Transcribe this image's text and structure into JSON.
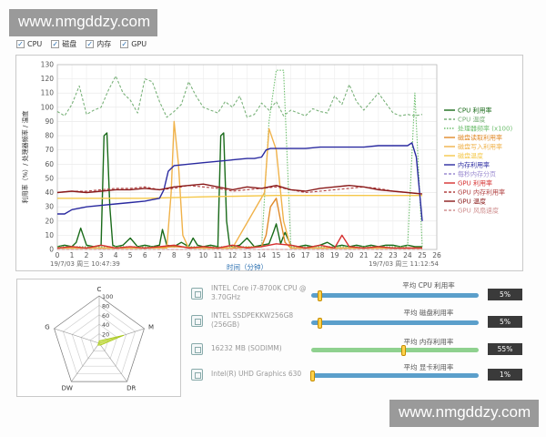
{
  "watermark": "www.nmgddzy.com",
  "toolbar": {
    "checkboxes": [
      {
        "label": "CPU",
        "checked": true
      },
      {
        "label": "磁盘",
        "checked": true
      },
      {
        "label": "内存",
        "checked": true
      },
      {
        "label": "GPU",
        "checked": true
      }
    ]
  },
  "chart_data": {
    "type": "line",
    "ylabel": "利用率（%）/ 处理器频率 / 温度",
    "xlabel": "时间（分钟）",
    "xlim": [
      0,
      26
    ],
    "ylim": [
      0,
      130
    ],
    "x_ticks": [
      0,
      1,
      2,
      3,
      4,
      5,
      6,
      7,
      8,
      9,
      10,
      11,
      12,
      13,
      14,
      15,
      16,
      17,
      18,
      19,
      20,
      21,
      22,
      23,
      24,
      25,
      26
    ],
    "y_ticks": [
      0,
      10,
      20,
      30,
      40,
      50,
      60,
      70,
      80,
      90,
      100,
      110,
      120,
      130
    ],
    "start_time": "19/7/03 周三 10:47:39",
    "end_time": "19/7/03 周三 11:12:54",
    "grid": true,
    "legend_position": "right",
    "series": [
      {
        "name": "CPU 利用率",
        "color": "#1a6b1a",
        "style": "solid",
        "x": [
          0,
          0.5,
          1,
          1.3,
          1.6,
          2,
          2.5,
          3,
          3.2,
          3.4,
          3.6,
          3.8,
          4,
          4.5,
          5,
          5.5,
          6,
          6.5,
          7,
          7.2,
          7.5,
          8,
          8.5,
          9,
          9.3,
          9.6,
          10,
          10.5,
          11,
          11.2,
          11.4,
          11.6,
          11.8,
          12,
          12.5,
          13,
          13.5,
          14,
          14.5,
          14.8,
          15,
          15.3,
          15.6,
          16,
          16.5,
          17,
          17.5,
          18,
          18.5,
          19,
          19.5,
          20,
          20.5,
          21,
          21.5,
          22,
          22.5,
          23,
          23.5,
          24,
          24.5,
          25
        ],
        "y": [
          2,
          3,
          2,
          5,
          15,
          3,
          2,
          3,
          80,
          82,
          30,
          3,
          2,
          3,
          8,
          2,
          3,
          2,
          3,
          14,
          3,
          2,
          5,
          2,
          8,
          3,
          2,
          3,
          2,
          80,
          82,
          20,
          3,
          2,
          3,
          8,
          2,
          3,
          4,
          12,
          18,
          4,
          12,
          3,
          2,
          3,
          2,
          3,
          5,
          2,
          3,
          2,
          3,
          2,
          3,
          2,
          3,
          3,
          2,
          3,
          2,
          2
        ]
      },
      {
        "name": "CPU 温度",
        "color": "#7ab27a",
        "style": "dashed",
        "x": [
          0,
          0.5,
          1,
          1.5,
          2,
          2.5,
          3,
          3.5,
          4,
          4.5,
          5,
          5.5,
          6,
          6.5,
          7,
          7.5,
          8,
          8.5,
          9,
          9.5,
          10,
          10.5,
          11,
          11.5,
          12,
          12.5,
          13,
          13.5,
          14,
          14.5,
          15,
          15.5,
          16,
          16.5,
          17,
          17.5,
          18,
          18.5,
          19,
          19.5,
          20,
          20.5,
          21,
          21.5,
          22,
          22.5,
          23,
          23.5,
          24,
          24.5,
          25
        ],
        "y": [
          97,
          94,
          102,
          115,
          95,
          98,
          100,
          112,
          122,
          110,
          105,
          96,
          120,
          118,
          104,
          93,
          97,
          102,
          118,
          108,
          100,
          98,
          96,
          104,
          100,
          108,
          93,
          95,
          103,
          98,
          104,
          94,
          98,
          96,
          94,
          99,
          97,
          96,
          108,
          102,
          116,
          104,
          98,
          104,
          110,
          103,
          96,
          94,
          95,
          94,
          95
        ]
      },
      {
        "name": "处理器频率 (x100)",
        "color": "#6fbf6f",
        "style": "dotted",
        "x": [
          0,
          2,
          4,
          6,
          7.5,
          8,
          8.5,
          9,
          10,
          12,
          14,
          14.5,
          15,
          15.5,
          16,
          18,
          20,
          22,
          24,
          24.5,
          25
        ],
        "y": [
          2,
          2,
          2,
          2,
          2,
          3,
          2,
          2,
          2,
          2,
          2,
          90,
          126,
          126,
          2,
          2,
          2,
          2,
          2,
          110,
          2
        ]
      },
      {
        "name": "磁盘读取利用率",
        "color": "#e08a2a",
        "style": "solid",
        "x": [
          0,
          2,
          4,
          6,
          8,
          10,
          12,
          14,
          14.3,
          14.6,
          15,
          15.3,
          15.6,
          16,
          18,
          20,
          22,
          24,
          25
        ],
        "y": [
          1,
          1,
          1,
          1,
          2,
          1,
          1,
          2,
          10,
          30,
          36,
          20,
          5,
          1,
          1,
          1,
          1,
          1,
          1
        ]
      },
      {
        "name": "磁盘写入利用率",
        "color": "#f0b24a",
        "style": "solid",
        "x": [
          0,
          4,
          7.5,
          7.8,
          8,
          8.3,
          8.6,
          9,
          12,
          14.2,
          14.5,
          15,
          15.5,
          16,
          20,
          25
        ],
        "y": [
          1,
          1,
          1,
          40,
          90,
          60,
          10,
          1,
          1,
          40,
          85,
          70,
          20,
          1,
          1,
          1
        ]
      },
      {
        "name": "磁盘温度",
        "color": "#f5c84a",
        "style": "solid",
        "x": [
          0,
          5,
          6,
          10,
          15,
          20,
          24,
          25
        ],
        "y": [
          36,
          36,
          36,
          37,
          38,
          38,
          38,
          38
        ]
      },
      {
        "name": "内存利用率",
        "color": "#2a2aa0",
        "style": "solid",
        "x": [
          0,
          0.5,
          1,
          2,
          3,
          4,
          5,
          6,
          6.5,
          7,
          7.3,
          7.6,
          8,
          9,
          10,
          11,
          12,
          13,
          13.5,
          14,
          14.3,
          14.6,
          15,
          16,
          17,
          18,
          19,
          20,
          21,
          22,
          23,
          24,
          24.3,
          24.6,
          25
        ],
        "y": [
          25,
          25,
          28,
          30,
          31,
          32,
          33,
          34,
          35,
          36,
          42,
          55,
          59,
          60,
          61,
          62,
          63,
          64,
          64,
          65,
          70,
          71,
          71,
          71,
          71,
          72,
          72,
          72,
          72,
          73,
          73,
          73,
          75,
          65,
          20
        ]
      },
      {
        "name": "每秒内存分页",
        "color": "#9a8ad0",
        "style": "dashed",
        "x": [
          0,
          25
        ],
        "y": [
          0,
          0
        ]
      },
      {
        "name": "GPU 利用率",
        "color": "#d63030",
        "style": "solid",
        "x": [
          0,
          1,
          2,
          3,
          4,
          5,
          6,
          7,
          8,
          9,
          10,
          11,
          12,
          13,
          14,
          15,
          16,
          17,
          18,
          19,
          19.5,
          20,
          21,
          22,
          23,
          24,
          25
        ],
        "y": [
          1,
          2,
          1,
          3,
          1,
          2,
          1,
          2,
          3,
          1,
          2,
          1,
          3,
          1,
          2,
          4,
          3,
          1,
          3,
          1,
          10,
          2,
          1,
          2,
          1,
          1,
          1
        ]
      },
      {
        "name": "GPU 内存利用率",
        "color": "#b04040",
        "style": "dashed",
        "x": [
          0,
          1,
          2,
          3,
          4,
          5,
          6,
          7,
          8,
          9,
          10,
          11,
          12,
          13,
          14,
          15,
          16,
          17,
          18,
          19,
          20,
          21,
          22,
          23,
          24,
          25
        ],
        "y": [
          40,
          41,
          41,
          42,
          43,
          43,
          44,
          42,
          43,
          45,
          44,
          43,
          41,
          42,
          43,
          44,
          42,
          40,
          41,
          42,
          43,
          44,
          43,
          41,
          40,
          39
        ]
      },
      {
        "name": "GPU 温度",
        "color": "#8a1a1a",
        "style": "solid",
        "x": [
          0,
          1,
          2,
          3,
          4,
          5,
          6,
          7,
          8,
          9,
          10,
          11,
          12,
          13,
          14,
          15,
          16,
          17,
          18,
          19,
          20,
          21,
          22,
          23,
          24,
          25
        ],
        "y": [
          40,
          41,
          40,
          41,
          42,
          42,
          43,
          42,
          44,
          45,
          46,
          44,
          42,
          44,
          43,
          45,
          42,
          41,
          43,
          44,
          45,
          44,
          42,
          41,
          40,
          39
        ]
      },
      {
        "name": "GPU 风扇速度",
        "color": "#d09090",
        "style": "dashed",
        "x": [
          0,
          25
        ],
        "y": [
          0,
          0
        ]
      }
    ]
  },
  "radar": {
    "axes": [
      {
        "label": "C",
        "value": 5
      },
      {
        "label": "M",
        "value": 55
      },
      {
        "label": "DR",
        "value": 5
      },
      {
        "label": "DW",
        "value": 5
      },
      {
        "label": "G",
        "value": 1
      }
    ],
    "ticks": [
      "20",
      "40",
      "60",
      "80",
      "100"
    ],
    "max": 100
  },
  "hardware": [
    {
      "icon": "cpu-icon",
      "name": "INTEL Core i7-8700K CPU @ 3.70GHz",
      "meter_label": "平均 CPU 利用率",
      "percent_text": "5%",
      "value": 5,
      "track_color": "#5b9fcb"
    },
    {
      "icon": "disk-icon",
      "name": "INTEL SSDPEKKW256G8 (256GB)",
      "meter_label": "平均 磁盘利用率",
      "percent_text": "5%",
      "value": 5,
      "track_color": "#5b9fcb"
    },
    {
      "icon": "memory-icon",
      "name": "16232 MB (SODIMM)",
      "meter_label": "平均 内存利用率",
      "percent_text": "55%",
      "value": 55,
      "track_color": "#8fd18f"
    },
    {
      "icon": "gpu-icon",
      "name": "Intel(R) UHD Graphics 630",
      "meter_label": "平均 显卡利用率",
      "percent_text": "1%",
      "value": 1,
      "track_color": "#5b9fcb"
    }
  ]
}
